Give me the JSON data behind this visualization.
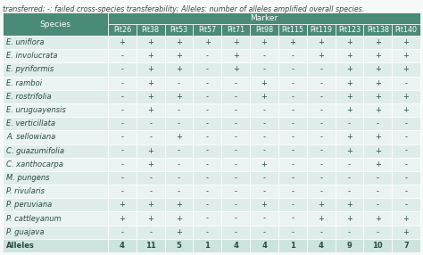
{
  "caption": "transferred; -: failed cross-species transferability; Alleles: number of alleles amplified overall species.",
  "header_top": "Marker",
  "col_header_species": "Species",
  "markers": [
    "Pit26",
    "Pit38",
    "Pit53",
    "Pit57",
    "Pit71",
    "Pit98",
    "Pit115",
    "Pit119",
    "Pit123",
    "Pit138",
    "Pit140"
  ],
  "species": [
    "E. uniflora",
    "E. involucrata",
    "E. pyriformis",
    "E. ramboi",
    "E. rostrifolia",
    "E. uruguayensis",
    "E. verticillata",
    "A. sellowiana",
    "C. guazumifolia",
    "C. xanthocarpa",
    "M. pungens",
    "P. rivularis",
    "P. peruviana",
    "P. cattleyanum",
    "P. guajava",
    "Alleles"
  ],
  "data": [
    [
      "+",
      "+",
      "+",
      "+",
      "+",
      "+",
      "+",
      "+",
      "+",
      "+",
      "+"
    ],
    [
      "-",
      "+",
      "+",
      "-",
      "+",
      "-",
      "-",
      "+",
      "+",
      "+",
      "+"
    ],
    [
      "-",
      "+",
      "+",
      "-",
      "+",
      "-",
      "-",
      "-",
      "+",
      "+",
      "+"
    ],
    [
      "-",
      "+",
      "-",
      "-",
      "-",
      "+",
      "-",
      "-",
      "+",
      "+",
      "-"
    ],
    [
      "-",
      "+",
      "+",
      "-",
      "-",
      "+",
      "-",
      "-",
      "+",
      "+",
      "+"
    ],
    [
      "-",
      "+",
      "-",
      "-",
      "-",
      "-",
      "-",
      "-",
      "+",
      "+",
      "+"
    ],
    [
      "-",
      "-",
      "-",
      "-",
      "-",
      "-",
      "-",
      "-",
      "-",
      "-",
      "-"
    ],
    [
      "-",
      "-",
      "+",
      "-",
      "-",
      "-",
      "-",
      "-",
      "+",
      "+",
      "-"
    ],
    [
      "-",
      "+",
      "-",
      "-",
      "-",
      "-",
      "-",
      "-",
      "+",
      "+",
      "-"
    ],
    [
      "-",
      "+",
      "-",
      "-",
      "-",
      "+",
      "-",
      "-",
      "-",
      "+",
      "-"
    ],
    [
      "-",
      "-",
      "-",
      "-",
      "-",
      "-",
      "-",
      "-",
      "-",
      "-",
      "-"
    ],
    [
      "-",
      "-",
      "-",
      "-",
      "-",
      "-",
      "-",
      "-",
      "-",
      "-",
      "-"
    ],
    [
      "+",
      "+",
      "+",
      "-",
      "-",
      "+",
      "-",
      "+",
      "+",
      "-",
      "-"
    ],
    [
      "+",
      "+",
      "+",
      "-",
      "-",
      "-",
      "-",
      "+",
      "+",
      "+",
      "+"
    ],
    [
      "-",
      "-",
      "+",
      "-",
      "-",
      "-",
      "-",
      "-",
      "-",
      "-",
      "+"
    ],
    [
      "4",
      "11",
      "5",
      "1",
      "4",
      "4",
      "1",
      "4",
      "9",
      "10",
      "7"
    ]
  ],
  "header_bg": "#4a8a78",
  "header_text_color": "#ffffff",
  "row_colors": [
    "#deecea",
    "#eaf3f1"
  ],
  "last_row_bg": "#cde3de",
  "cell_text_color": "#2a4a42",
  "border_color": "#ffffff",
  "fig_bg": "#f5faf9",
  "caption_color": "#444444",
  "font_size_caption": 5.8,
  "font_size_header1": 6.5,
  "font_size_header2": 5.8,
  "font_size_cell": 6.0,
  "font_size_species": 6.0
}
